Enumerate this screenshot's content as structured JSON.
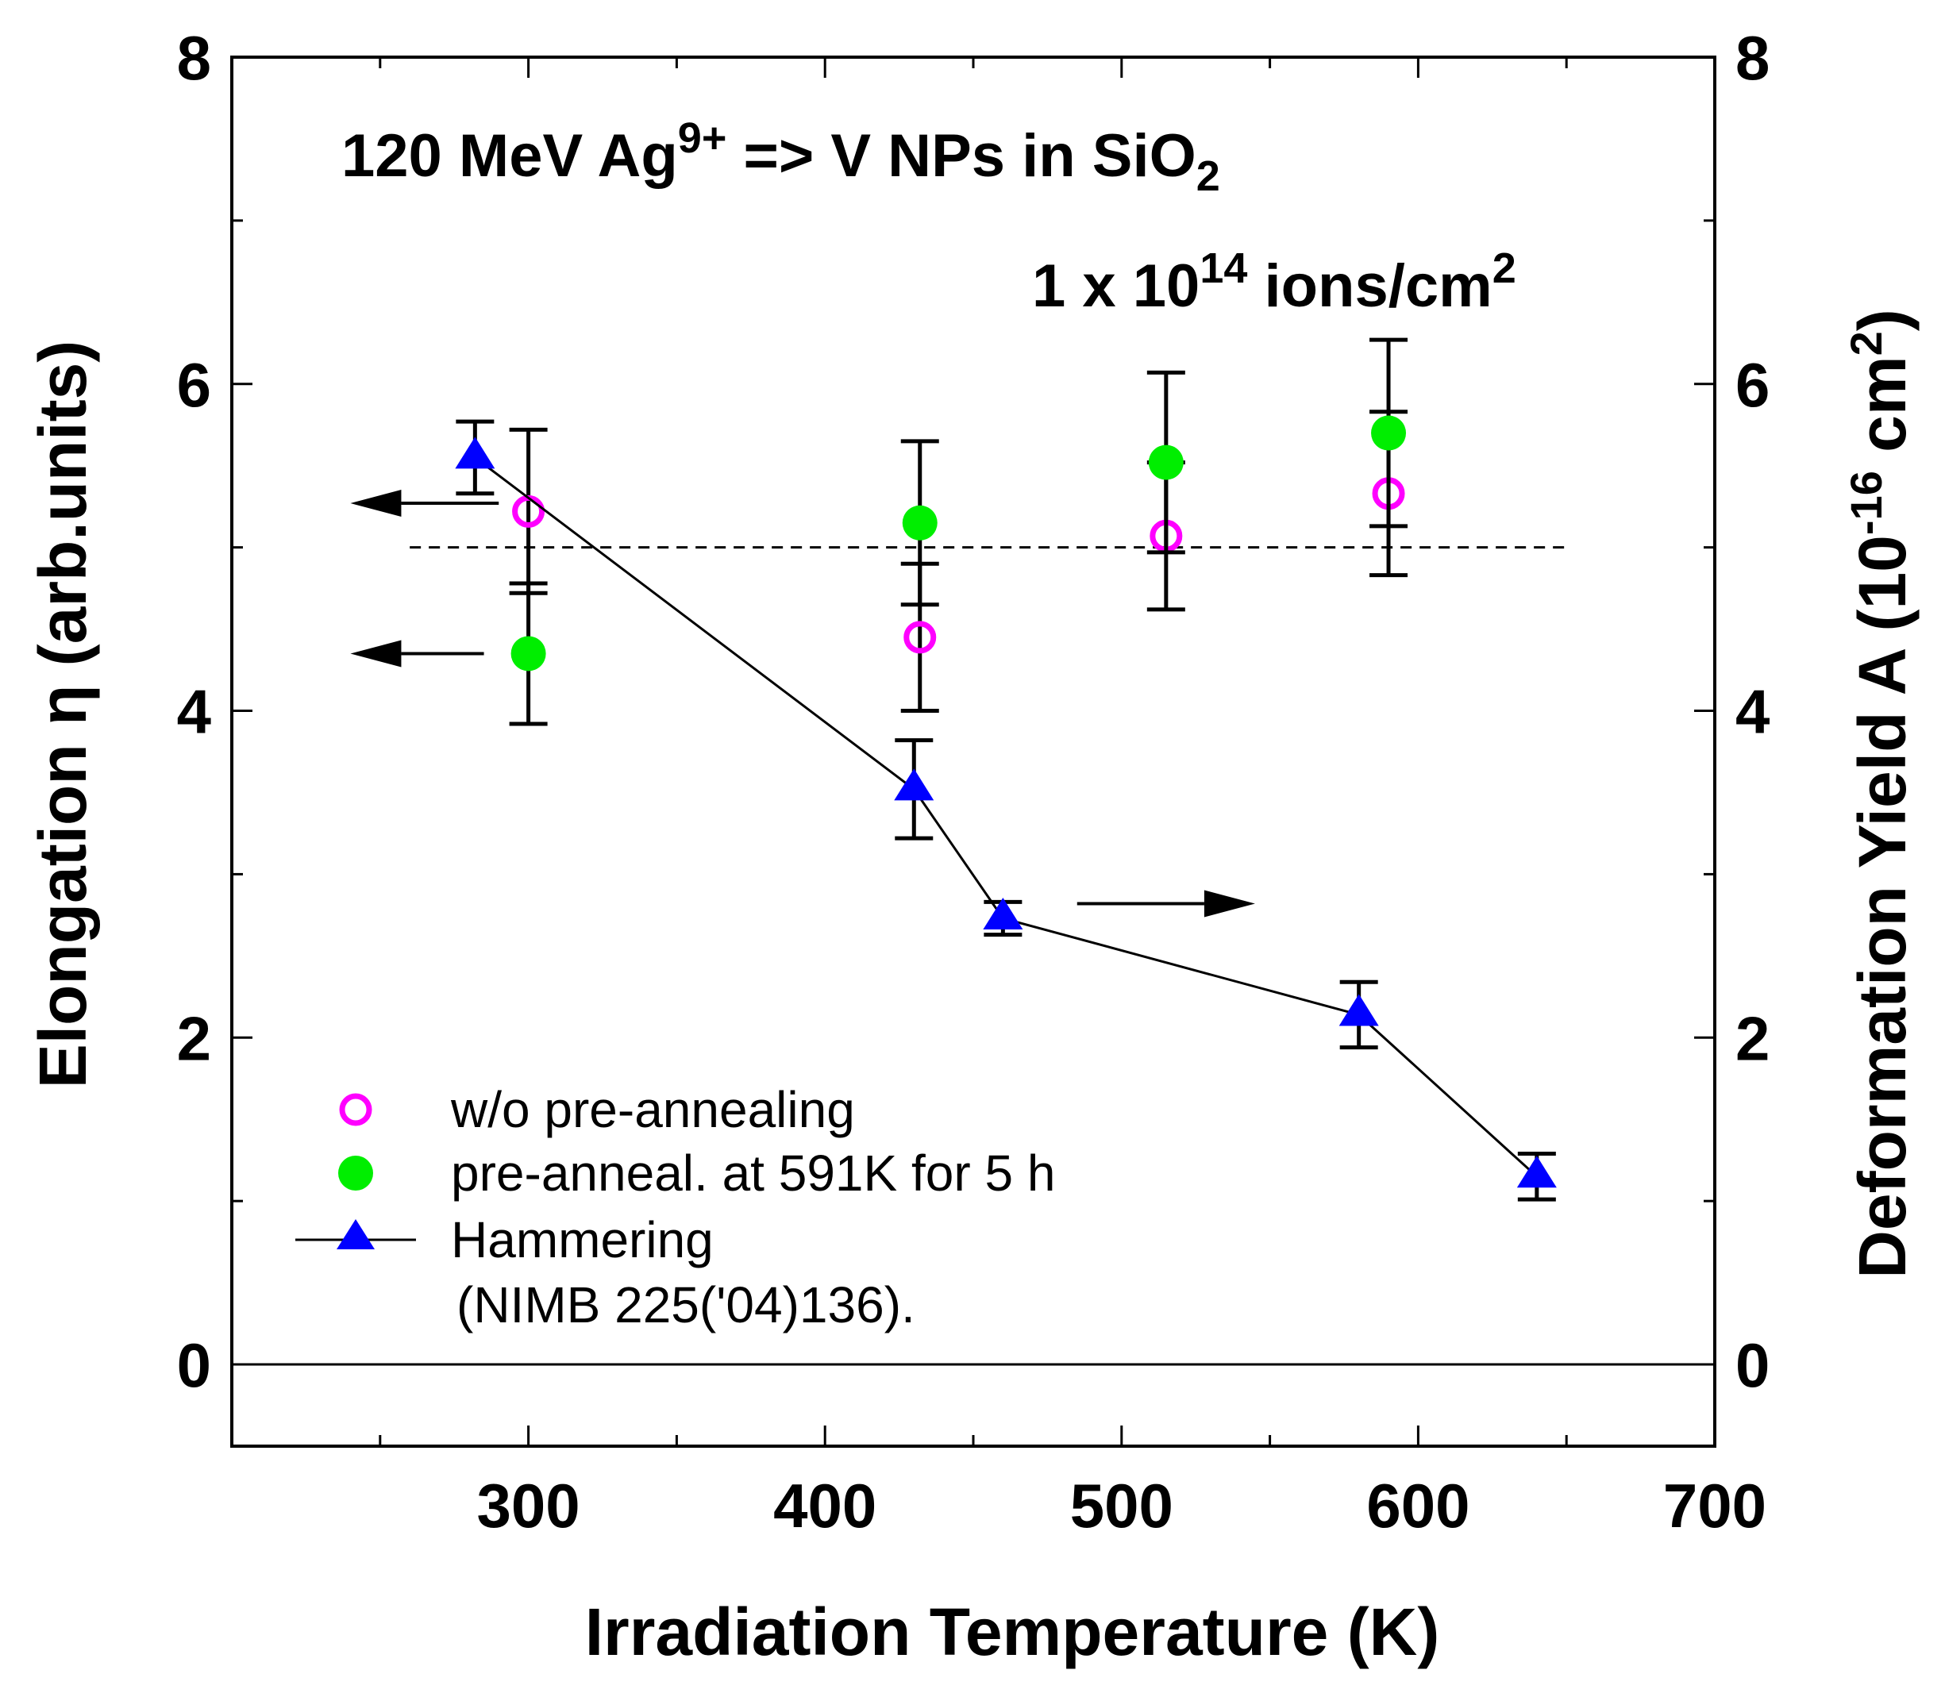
{
  "chart_data": {
    "type": "scatter",
    "title_parts": [
      "120 MeV Ag",
      "9+",
      " => V NPs in SiO",
      "2"
    ],
    "fluence_parts": [
      "1 x 10",
      "14",
      " ions/cm",
      "2"
    ],
    "xlabel": "Irradiation Temperature  (K)",
    "ylabel_left": "Elongation η  (arb.units)",
    "ylabel_right_parts": [
      "Deformation Yield  A  (10",
      "-16",
      " cm",
      "2",
      ")"
    ],
    "xlim": [
      200,
      700
    ],
    "ylim": [
      -0.5,
      8
    ],
    "x_ticks": [
      "300",
      "400",
      "500",
      "600",
      "700"
    ],
    "y_ticks": [
      "0",
      "2",
      "4",
      "6",
      "8"
    ],
    "reference_line_y": 5.0,
    "zero_line_y": 0,
    "series": [
      {
        "name": "w/o pre-annealing",
        "marker": "open-circle",
        "color": "#ff00ff",
        "axis": "left",
        "x": [
          300,
          432,
          515,
          590
        ],
        "y": [
          5.22,
          4.45,
          5.07,
          5.33
        ],
        "err": [
          0.5,
          0.45,
          0.45,
          0.5
        ]
      },
      {
        "name": "pre-anneal. at 591K for 5 h",
        "marker": "filled-circle",
        "color": "#00ee00",
        "axis": "left",
        "x": [
          300,
          432,
          515,
          590
        ],
        "y": [
          4.35,
          5.15,
          5.52,
          5.7
        ],
        "err": [
          0.43,
          0.5,
          0.55,
          0.57
        ]
      },
      {
        "name": "Hammering",
        "name_line2": "(NIMB 225('04)136).",
        "marker": "filled-triangle",
        "color": "#0000ff",
        "axis": "right",
        "line": true,
        "x": [
          282,
          430,
          460,
          580,
          640
        ],
        "y": [
          5.55,
          3.52,
          2.73,
          2.14,
          1.15
        ],
        "err": [
          0.22,
          0.3,
          0.1,
          0.2,
          0.14
        ]
      }
    ],
    "arrows": [
      {
        "direction": "left",
        "x_from": 290,
        "x_to": 240,
        "y": 5.27
      },
      {
        "direction": "left",
        "x_from": 285,
        "x_to": 240,
        "y": 4.35
      },
      {
        "direction": "right",
        "x_from": 485,
        "x_to": 545,
        "y": 2.82
      }
    ]
  }
}
